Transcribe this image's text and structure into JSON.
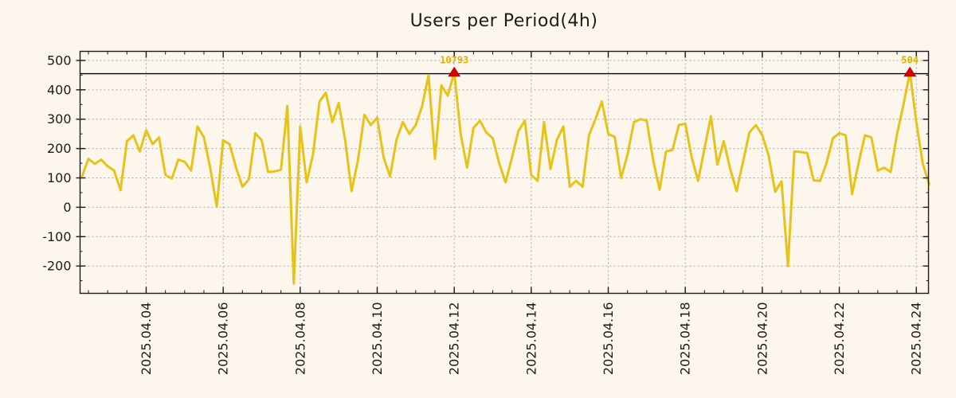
{
  "title": "Users per Period(4h)",
  "colors": {
    "background": "#fdf6ec",
    "series_line": "#e6c319",
    "marker_fill": "#dd0000",
    "marker_edge": "#aa0000",
    "annotation_text": "#d9b304",
    "grid": "#a8a8a8",
    "axis": "#1a1a1a",
    "threshold_line": "#000000",
    "tick_text": "#1c1c1c"
  },
  "chart_data": {
    "type": "line",
    "title": "Users per Period(4h)",
    "series_name": "users-per-4h-period",
    "x_start": "2025-04-02 08:00",
    "interval_hours": 4,
    "values": [
      105,
      165,
      148,
      162,
      140,
      125,
      58,
      225,
      245,
      190,
      262,
      215,
      238,
      110,
      98,
      162,
      155,
      125,
      275,
      238,
      132,
      2,
      228,
      215,
      135,
      70,
      95,
      252,
      228,
      120,
      122,
      128,
      345,
      -260,
      275,
      85,
      180,
      360,
      390,
      290,
      355,
      230,
      55,
      160,
      315,
      280,
      305,
      170,
      105,
      230,
      290,
      250,
      280,
      345,
      450,
      165,
      415,
      380,
      460,
      250,
      135,
      270,
      295,
      255,
      235,
      150,
      85,
      170,
      260,
      295,
      110,
      90,
      290,
      130,
      230,
      275,
      70,
      90,
      70,
      245,
      300,
      360,
      250,
      240,
      100,
      180,
      290,
      300,
      295,
      160,
      60,
      190,
      195,
      280,
      285,
      170,
      90,
      200,
      310,
      145,
      225,
      130,
      55,
      155,
      255,
      280,
      245,
      175,
      53,
      88,
      -200,
      190,
      188,
      185,
      92,
      90,
      150,
      235,
      252,
      245,
      45,
      150,
      245,
      238,
      125,
      135,
      120,
      250,
      350,
      460,
      290,
      150,
      78
    ],
    "ylim": [
      -293,
      531
    ],
    "yticks": [
      -200,
      -100,
      0,
      100,
      200,
      300,
      400,
      500
    ],
    "ytick_labels": [
      "-200",
      "-100",
      "0",
      "100",
      "200",
      "300",
      "400",
      "500"
    ],
    "y_minor_step": 50,
    "xlim_hours": [
      -1.2,
      527.6
    ],
    "xtick_hours": [
      40,
      88,
      136,
      184,
      232,
      280,
      328,
      376,
      424,
      472,
      520
    ],
    "xtick_labels": [
      "2025.04.04",
      "2025.04.06",
      "2025.04.08",
      "2025.04.10",
      "2025.04.12",
      "2025.04.14",
      "2025.04.16",
      "2025.04.18",
      "2025.04.20",
      "2025.04.22",
      "2025.04.24"
    ],
    "x_minor_start_hour": 4,
    "x_minor_step_hours": 12,
    "grid": true,
    "legend": "none",
    "threshold_value": 455,
    "annotations": [
      {
        "index": 58,
        "label": "10793",
        "marker": "red-triangle"
      },
      {
        "index": 129,
        "label": "504",
        "marker": "red-triangle"
      }
    ]
  }
}
